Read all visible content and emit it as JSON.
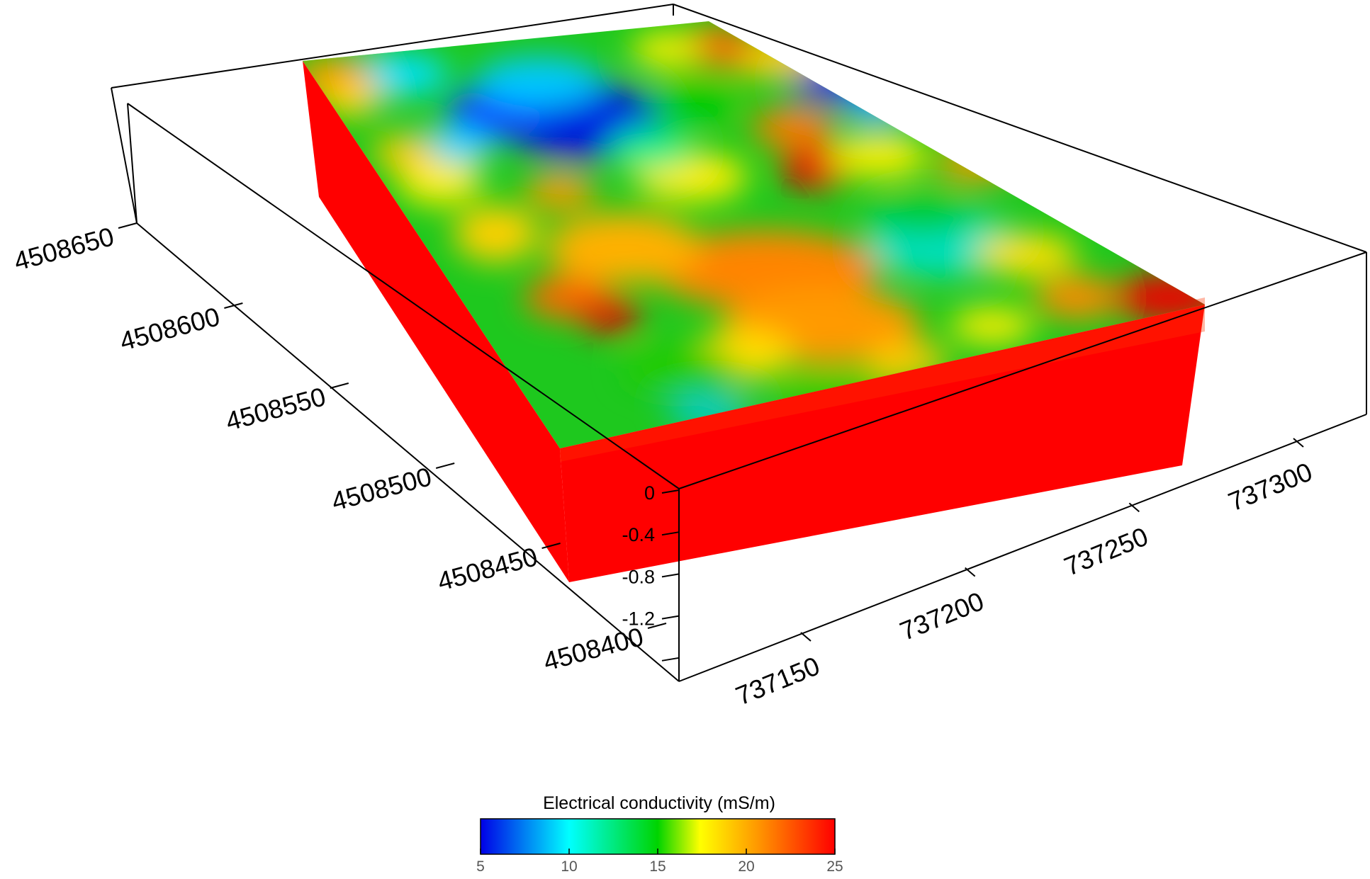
{
  "chart_data": {
    "type": "3d-block",
    "x_axis": {
      "ticks": [
        "737150",
        "737200",
        "737250",
        "737300"
      ],
      "values": [
        737150,
        737200,
        737250,
        737300
      ]
    },
    "y_axis": {
      "ticks": [
        "4508400",
        "4508450",
        "4508500",
        "4508550",
        "4508600",
        "4508650"
      ],
      "values": [
        4508400,
        4508450,
        4508500,
        4508550,
        4508600,
        4508650
      ]
    },
    "z_axis": {
      "ticks": [
        "0",
        "-0.4",
        "-0.8",
        "-1.2"
      ],
      "values": [
        0,
        -0.4,
        -0.8,
        -1.2
      ]
    },
    "surface": "interpolated electrical conductivity at ground surface",
    "sides": "uniform red (about 25 mS/m)",
    "colorbar": {
      "title": "Electrical conductivity (mS/m)",
      "min": 5,
      "max": 25,
      "ticks": [
        "5",
        "10",
        "15",
        "20",
        "25"
      ],
      "colormap": [
        "#0000e6",
        "#00ffff",
        "#00d400",
        "#ffff00",
        "#ff9900",
        "#ff0000"
      ]
    },
    "bounding_box": true,
    "grid": false
  }
}
